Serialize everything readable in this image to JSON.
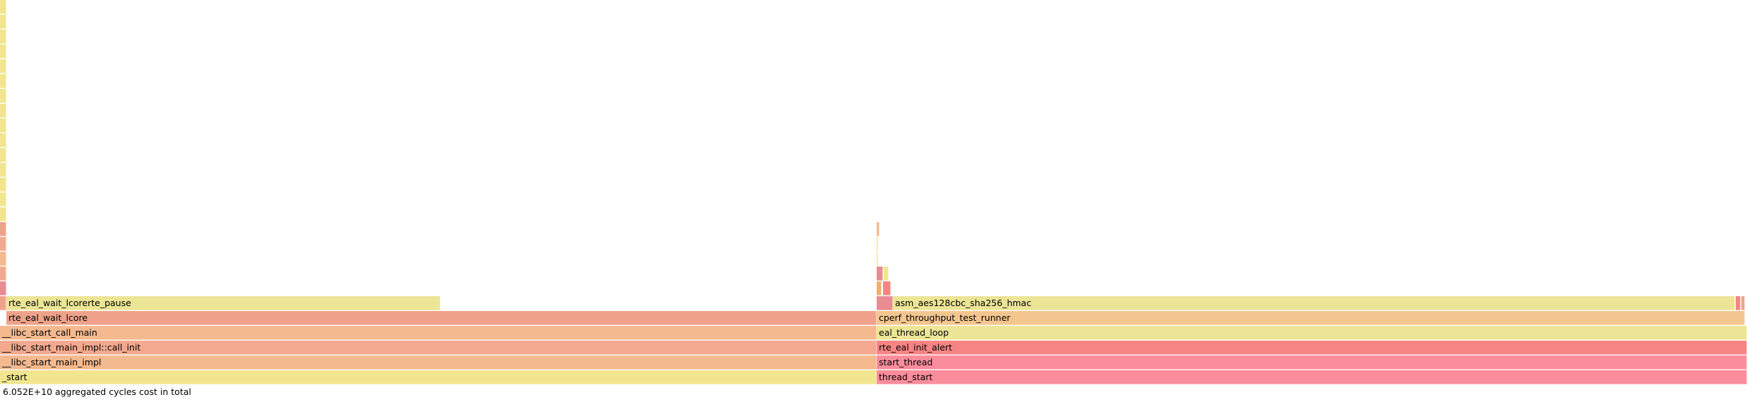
{
  "colors": {
    "yellow": "#f1e58f",
    "yellow_green": "#ebe595",
    "light_orange": "#f4b98f",
    "salmon": "#efa28a",
    "pink_salmon": "#f3a98f",
    "orange": "#f4c68f",
    "red_pink": "#f68484",
    "pink": "#fb8c9c",
    "mauve": "#e88c92",
    "thin_orange": "#f0b070"
  },
  "flamegraph": {
    "total_label": "6.052E+10 aggregated cycles cost in total",
    "frames": [
      {
        "name": "_start",
        "label": "_start",
        "depth": 0,
        "start": 0.0,
        "width": 0.5018,
        "color": "yellow"
      },
      {
        "name": "__libc_start_main_impl",
        "label": "__libc_start_main_impl",
        "depth": 1,
        "start": 0.0,
        "width": 0.5018,
        "color": "light_orange"
      },
      {
        "name": "__libc_start_main_impl::call_init",
        "label": "__libc_start_main_impl::call_init",
        "depth": 2,
        "start": 0.0,
        "width": 0.5018,
        "color": "pink_salmon"
      },
      {
        "name": "__libc_start_call_main",
        "label": "__libc_start_call_main",
        "depth": 3,
        "start": 0.0,
        "width": 0.5018,
        "color": "light_orange"
      },
      {
        "name": "rte_eal_wait_lcore",
        "label": "rte_eal_wait_lcore",
        "depth": 4,
        "start": 0.0036,
        "width": 0.4982,
        "color": "salmon"
      },
      {
        "name": "rte_eal_wait_lcorerte_pause",
        "label": "rte_eal_wait_lcorerte_pause",
        "depth": 5,
        "start": 0.0036,
        "width": 0.2485,
        "color": "yellow_green"
      },
      {
        "name": "thread_start",
        "label": "thread_start",
        "depth": 0,
        "start": 0.5018,
        "width": 0.4982,
        "color": "pink"
      },
      {
        "name": "start_thread",
        "label": "start_thread",
        "depth": 1,
        "start": 0.5018,
        "width": 0.4982,
        "color": "pink"
      },
      {
        "name": "rte_eal_init_alert",
        "label": "rte_eal_init_alert",
        "depth": 2,
        "start": 0.5018,
        "width": 0.4982,
        "color": "red_pink"
      },
      {
        "name": "eal_thread_loop",
        "label": "eal_thread_loop",
        "depth": 3,
        "start": 0.5018,
        "width": 0.4982,
        "color": "yellow_green"
      },
      {
        "name": "cperf_throughput_test_runner",
        "label": "cperf_throughput_test_runner",
        "depth": 4,
        "start": 0.5018,
        "width": 0.497,
        "color": "orange"
      },
      {
        "name": "asm_aes128cbc_sha256_hmac",
        "label": "asm_aes128cbc_sha256_hmac",
        "depth": 5,
        "start": 0.5111,
        "width": 0.482,
        "color": "yellow_green"
      },
      {
        "name": "libc-left-stack-5",
        "label": "",
        "depth": 5,
        "start": 0.0,
        "width": 0.0036,
        "color": "salmon"
      },
      {
        "name": "libc-left-stack-6",
        "label": "",
        "depth": 6,
        "start": 0.0,
        "width": 0.0036,
        "color": "mauve"
      },
      {
        "name": "libc-left-stack-7",
        "label": "",
        "depth": 7,
        "start": 0.0,
        "width": 0.0036,
        "color": "pink_salmon"
      },
      {
        "name": "libc-left-stack-8",
        "label": "",
        "depth": 8,
        "start": 0.0,
        "width": 0.0036,
        "color": "light_orange"
      },
      {
        "name": "libc-left-stack-9",
        "label": "",
        "depth": 9,
        "start": 0.0,
        "width": 0.0036,
        "color": "pink_salmon"
      },
      {
        "name": "libc-left-stack-10",
        "label": "",
        "depth": 10,
        "start": 0.0,
        "width": 0.0036,
        "color": "salmon"
      },
      {
        "name": "libc-left-stack-11",
        "label": "",
        "depth": 11,
        "start": 0.0,
        "width": 0.0036,
        "color": "yellow"
      },
      {
        "name": "libc-left-stack-12",
        "label": "",
        "depth": 12,
        "start": 0.0,
        "width": 0.0036,
        "color": "yellow"
      },
      {
        "name": "libc-left-stack-13",
        "label": "",
        "depth": 13,
        "start": 0.0,
        "width": 0.0036,
        "color": "yellow"
      },
      {
        "name": "libc-left-stack-14",
        "label": "",
        "depth": 14,
        "start": 0.0,
        "width": 0.0036,
        "color": "yellow"
      },
      {
        "name": "libc-left-stack-15",
        "label": "",
        "depth": 15,
        "start": 0.0,
        "width": 0.0036,
        "color": "yellow"
      },
      {
        "name": "libc-left-stack-16",
        "label": "",
        "depth": 16,
        "start": 0.0,
        "width": 0.0036,
        "color": "yellow"
      },
      {
        "name": "libc-left-stack-17",
        "label": "",
        "depth": 17,
        "start": 0.0,
        "width": 0.0036,
        "color": "yellow"
      },
      {
        "name": "libc-left-stack-18",
        "label": "",
        "depth": 18,
        "start": 0.0,
        "width": 0.0036,
        "color": "yellow"
      },
      {
        "name": "libc-left-stack-19",
        "label": "",
        "depth": 19,
        "start": 0.0,
        "width": 0.0036,
        "color": "yellow"
      },
      {
        "name": "libc-left-stack-20",
        "label": "",
        "depth": 20,
        "start": 0.0,
        "width": 0.0036,
        "color": "yellow"
      },
      {
        "name": "libc-left-stack-21",
        "label": "",
        "depth": 21,
        "start": 0.0,
        "width": 0.0036,
        "color": "yellow"
      },
      {
        "name": "libc-left-stack-22",
        "label": "",
        "depth": 22,
        "start": 0.0,
        "width": 0.0036,
        "color": "yellow"
      },
      {
        "name": "libc-left-stack-23",
        "label": "",
        "depth": 23,
        "start": 0.0,
        "width": 0.0036,
        "color": "yellow"
      },
      {
        "name": "libc-left-stack-24",
        "label": "",
        "depth": 24,
        "start": 0.0,
        "width": 0.0036,
        "color": "yellow"
      },
      {
        "name": "libc-left-stack-25",
        "label": "",
        "depth": 25,
        "start": 0.0,
        "width": 0.0036,
        "color": "yellow"
      },
      {
        "name": "worker-small-frame-5a",
        "label": "",
        "depth": 5,
        "start": 0.5018,
        "width": 0.0093,
        "color": "mauve"
      },
      {
        "name": "worker-small-frame-6a",
        "label": "",
        "depth": 6,
        "start": 0.5018,
        "width": 0.003,
        "color": "thin_orange"
      },
      {
        "name": "worker-small-frame-6b",
        "label": "",
        "depth": 6,
        "start": 0.5055,
        "width": 0.0045,
        "color": "red_pink"
      },
      {
        "name": "worker-small-frame-7a",
        "label": "",
        "depth": 7,
        "start": 0.5018,
        "width": 0.0036,
        "color": "mauve"
      },
      {
        "name": "worker-small-frame-7b",
        "label": "",
        "depth": 7,
        "start": 0.506,
        "width": 0.003,
        "color": "yellow"
      },
      {
        "name": "worker-small-frame-8a",
        "label": "",
        "depth": 8,
        "start": 0.5018,
        "width": 0.001,
        "color": "yellow"
      },
      {
        "name": "worker-small-frame-9a",
        "label": "",
        "depth": 9,
        "start": 0.5018,
        "width": 0.001,
        "color": "yellow"
      },
      {
        "name": "worker-small-frame-10a",
        "label": "",
        "depth": 10,
        "start": 0.5018,
        "width": 0.0016,
        "color": "light_orange"
      },
      {
        "name": "hmac-tail-frame-a",
        "label": "",
        "depth": 5,
        "start": 0.9935,
        "width": 0.003,
        "color": "red_pink"
      },
      {
        "name": "hmac-tail-frame-b",
        "label": "",
        "depth": 5,
        "start": 0.9968,
        "width": 0.002,
        "color": "salmon"
      }
    ]
  }
}
